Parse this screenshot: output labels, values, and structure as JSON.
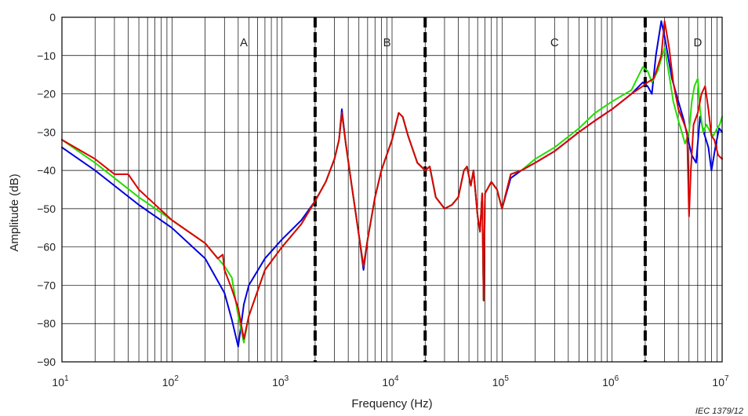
{
  "chart_data": {
    "type": "line",
    "xscale": "log",
    "xlim": [
      10,
      10000000
    ],
    "ylim": [
      -90,
      0
    ],
    "xlabel": "Frequency   (Hz)",
    "ylabel": "Amplitude   (dB)",
    "grid": true,
    "y_ticks": [
      "0",
      "−10",
      "−20",
      "−30",
      "−40",
      "−50",
      "−60",
      "−70",
      "−80",
      "−90"
    ],
    "x_ticks": [
      {
        "base": "10",
        "exp": "1"
      },
      {
        "base": "10",
        "exp": "2"
      },
      {
        "base": "10",
        "exp": "3"
      },
      {
        "base": "10",
        "exp": "4"
      },
      {
        "base": "10",
        "exp": "5"
      },
      {
        "base": "10",
        "exp": "6"
      },
      {
        "base": "10",
        "exp": "7"
      }
    ],
    "regions": [
      {
        "label": "A",
        "x": 450
      },
      {
        "label": "B",
        "x": 9000
      },
      {
        "label": "C",
        "x": 300000
      },
      {
        "label": "D",
        "x": 6000000
      }
    ],
    "boundaries": [
      2000,
      20000,
      2000000
    ],
    "reference": "IEC   1379/12",
    "series": [
      {
        "color": "#0000dd",
        "points": [
          [
            10,
            -34
          ],
          [
            20,
            -40
          ],
          [
            50,
            -49
          ],
          [
            100,
            -55
          ],
          [
            200,
            -63
          ],
          [
            300,
            -72
          ],
          [
            350,
            -79
          ],
          [
            400,
            -86
          ],
          [
            450,
            -75
          ],
          [
            500,
            -70
          ],
          [
            700,
            -63
          ],
          [
            1000,
            -58
          ],
          [
            1500,
            -53
          ],
          [
            2000,
            -48
          ],
          [
            2500,
            -43
          ],
          [
            3000,
            -37
          ],
          [
            3300,
            -32
          ],
          [
            3500,
            -24
          ],
          [
            3800,
            -33
          ],
          [
            4300,
            -44
          ],
          [
            5000,
            -57
          ],
          [
            5500,
            -66
          ],
          [
            6000,
            -58
          ],
          [
            7000,
            -47
          ],
          [
            8000,
            -40
          ],
          [
            10000,
            -32
          ],
          [
            11500,
            -25
          ],
          [
            12500,
            -26
          ],
          [
            14000,
            -31
          ],
          [
            17000,
            -38
          ],
          [
            20000,
            -40
          ],
          [
            22000,
            -39
          ],
          [
            25000,
            -47
          ],
          [
            30000,
            -50
          ],
          [
            35000,
            -49
          ],
          [
            40000,
            -47
          ],
          [
            45000,
            -40
          ],
          [
            48000,
            -39
          ],
          [
            52000,
            -44
          ],
          [
            55000,
            -40
          ],
          [
            60000,
            -52
          ],
          [
            63000,
            -56
          ],
          [
            66000,
            -46
          ],
          [
            68000,
            -74
          ],
          [
            70000,
            -46
          ],
          [
            80000,
            -43
          ],
          [
            90000,
            -45
          ],
          [
            100000,
            -50
          ],
          [
            120000,
            -42
          ],
          [
            150000,
            -40
          ],
          [
            200000,
            -38
          ],
          [
            300000,
            -35
          ],
          [
            500000,
            -30
          ],
          [
            700000,
            -27
          ],
          [
            1000000,
            -24
          ],
          [
            1500000,
            -20
          ],
          [
            1900000,
            -17
          ],
          [
            2100000,
            -18
          ],
          [
            2300000,
            -20
          ],
          [
            2500000,
            -10
          ],
          [
            2800000,
            -1
          ],
          [
            3000000,
            -5
          ],
          [
            3500000,
            -16
          ],
          [
            4000000,
            -22
          ],
          [
            4500000,
            -27
          ],
          [
            5000000,
            -33
          ],
          [
            5300000,
            -36
          ],
          [
            5800000,
            -38
          ],
          [
            6300000,
            -26
          ],
          [
            6800000,
            -30
          ],
          [
            7500000,
            -34
          ],
          [
            8000000,
            -40
          ],
          [
            8800000,
            -33
          ],
          [
            9400000,
            -29
          ],
          [
            10000000,
            -30
          ]
        ]
      },
      {
        "color": "#22dd00",
        "points": [
          [
            10,
            -32
          ],
          [
            20,
            -38
          ],
          [
            50,
            -47
          ],
          [
            100,
            -53
          ],
          [
            200,
            -59
          ],
          [
            300,
            -65
          ],
          [
            350,
            -68
          ],
          [
            400,
            -78
          ],
          [
            450,
            -85
          ],
          [
            500,
            -78
          ],
          [
            700,
            -66
          ],
          [
            1000,
            -60
          ],
          [
            1500,
            -54
          ],
          [
            2000,
            -48
          ],
          [
            2500,
            -43
          ],
          [
            3000,
            -37
          ],
          [
            3300,
            -32
          ],
          [
            3500,
            -25
          ],
          [
            3800,
            -33
          ],
          [
            4300,
            -44
          ],
          [
            5000,
            -57
          ],
          [
            5500,
            -65
          ],
          [
            6000,
            -58
          ],
          [
            7000,
            -47
          ],
          [
            8000,
            -40
          ],
          [
            10000,
            -32
          ],
          [
            11500,
            -25
          ],
          [
            12500,
            -26
          ],
          [
            14000,
            -31
          ],
          [
            17000,
            -38
          ],
          [
            20000,
            -40
          ],
          [
            22000,
            -39
          ],
          [
            25000,
            -47
          ],
          [
            30000,
            -50
          ],
          [
            35000,
            -49
          ],
          [
            40000,
            -47
          ],
          [
            45000,
            -40
          ],
          [
            48000,
            -39
          ],
          [
            52000,
            -44
          ],
          [
            55000,
            -40
          ],
          [
            60000,
            -52
          ],
          [
            63000,
            -56
          ],
          [
            66000,
            -46
          ],
          [
            68000,
            -74
          ],
          [
            70000,
            -46
          ],
          [
            80000,
            -43
          ],
          [
            90000,
            -45
          ],
          [
            100000,
            -50
          ],
          [
            120000,
            -41
          ],
          [
            150000,
            -40
          ],
          [
            200000,
            -37
          ],
          [
            300000,
            -34
          ],
          [
            500000,
            -29
          ],
          [
            700000,
            -25
          ],
          [
            1000000,
            -22
          ],
          [
            1500000,
            -19
          ],
          [
            1900000,
            -13
          ],
          [
            2100000,
            -14
          ],
          [
            2300000,
            -17
          ],
          [
            2600000,
            -14
          ],
          [
            3000000,
            -8
          ],
          [
            3300000,
            -15
          ],
          [
            3600000,
            -22
          ],
          [
            4000000,
            -27
          ],
          [
            4300000,
            -30
          ],
          [
            4600000,
            -33
          ],
          [
            5000000,
            -30
          ],
          [
            5300000,
            -22
          ],
          [
            5600000,
            -18
          ],
          [
            6000000,
            -16
          ],
          [
            6300000,
            -24
          ],
          [
            6700000,
            -30
          ],
          [
            7200000,
            -28
          ],
          [
            7800000,
            -30
          ],
          [
            8300000,
            -31
          ],
          [
            9000000,
            -29
          ],
          [
            9500000,
            -28
          ],
          [
            10000000,
            -26
          ]
        ]
      },
      {
        "color": "#dd0000",
        "points": [
          [
            10,
            -32
          ],
          [
            20,
            -37
          ],
          [
            30,
            -41
          ],
          [
            40,
            -41
          ],
          [
            50,
            -45
          ],
          [
            100,
            -53
          ],
          [
            200,
            -59
          ],
          [
            260,
            -63
          ],
          [
            290,
            -62
          ],
          [
            300,
            -66
          ],
          [
            350,
            -71
          ],
          [
            400,
            -76
          ],
          [
            450,
            -84
          ],
          [
            500,
            -78
          ],
          [
            700,
            -66
          ],
          [
            1000,
            -60
          ],
          [
            1500,
            -54
          ],
          [
            2000,
            -48
          ],
          [
            2500,
            -43
          ],
          [
            3000,
            -37
          ],
          [
            3300,
            -32
          ],
          [
            3500,
            -25
          ],
          [
            3800,
            -33
          ],
          [
            4300,
            -44
          ],
          [
            5000,
            -57
          ],
          [
            5500,
            -65
          ],
          [
            6000,
            -58
          ],
          [
            7000,
            -47
          ],
          [
            8000,
            -40
          ],
          [
            10000,
            -32
          ],
          [
            11500,
            -25
          ],
          [
            12500,
            -26
          ],
          [
            14000,
            -31
          ],
          [
            17000,
            -38
          ],
          [
            20000,
            -40
          ],
          [
            22000,
            -39
          ],
          [
            25000,
            -47
          ],
          [
            30000,
            -50
          ],
          [
            35000,
            -49
          ],
          [
            40000,
            -47
          ],
          [
            45000,
            -40
          ],
          [
            48000,
            -39
          ],
          [
            52000,
            -44
          ],
          [
            55000,
            -40
          ],
          [
            60000,
            -52
          ],
          [
            63000,
            -56
          ],
          [
            66000,
            -46
          ],
          [
            68000,
            -74
          ],
          [
            70000,
            -46
          ],
          [
            80000,
            -43
          ],
          [
            90000,
            -45
          ],
          [
            100000,
            -50
          ],
          [
            120000,
            -41
          ],
          [
            150000,
            -40
          ],
          [
            200000,
            -38
          ],
          [
            300000,
            -35
          ],
          [
            500000,
            -30
          ],
          [
            700000,
            -27
          ],
          [
            1000000,
            -24
          ],
          [
            1500000,
            -20
          ],
          [
            1900000,
            -18
          ],
          [
            2100000,
            -17
          ],
          [
            2400000,
            -16
          ],
          [
            2800000,
            -10
          ],
          [
            3000000,
            -1
          ],
          [
            3300000,
            -8
          ],
          [
            3600000,
            -17
          ],
          [
            4000000,
            -24
          ],
          [
            4400000,
            -27
          ],
          [
            4800000,
            -30
          ],
          [
            5000000,
            -52
          ],
          [
            5200000,
            -40
          ],
          [
            5500000,
            -28
          ],
          [
            6000000,
            -25
          ],
          [
            6500000,
            -20
          ],
          [
            7000000,
            -18
          ],
          [
            7500000,
            -24
          ],
          [
            8000000,
            -31
          ],
          [
            8500000,
            -32
          ],
          [
            9200000,
            -36
          ],
          [
            10000000,
            -37
          ]
        ]
      }
    ]
  }
}
